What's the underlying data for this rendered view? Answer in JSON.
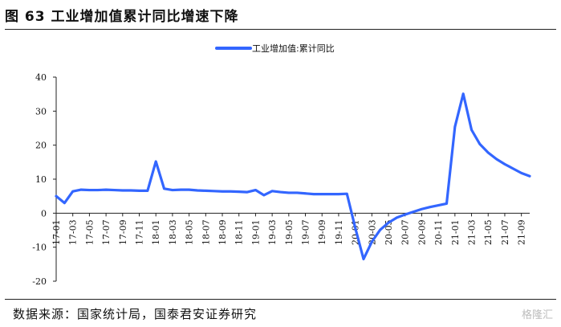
{
  "header": {
    "title": "图 63  工业增加值累计同比增速下降"
  },
  "footer": {
    "source": "数据来源：国家统计局，国泰君安证券研究",
    "watermark": "格隆汇"
  },
  "chart_data": {
    "type": "line",
    "title": "",
    "xlabel": "",
    "ylabel": "",
    "ylim": [
      -20,
      40
    ],
    "yticks": [
      -20,
      -10,
      0,
      10,
      20,
      30,
      40
    ],
    "grid": false,
    "legend_position": "top-center",
    "series": [
      {
        "name": "工业增加值:累计同比",
        "color": "#3366ff",
        "x": [
          "17-01",
          "17-02",
          "17-03",
          "17-04",
          "17-05",
          "17-06",
          "17-07",
          "17-08",
          "17-09",
          "17-10",
          "17-11",
          "17-12",
          "18-01",
          "18-02",
          "18-03",
          "18-04",
          "18-05",
          "18-06",
          "18-07",
          "18-08",
          "18-09",
          "18-10",
          "18-11",
          "18-12",
          "19-01",
          "19-02",
          "19-03",
          "19-04",
          "19-05",
          "19-06",
          "19-07",
          "19-08",
          "19-09",
          "19-10",
          "19-11",
          "19-12",
          "20-01",
          "20-02",
          "20-03",
          "20-04",
          "20-05",
          "20-06",
          "20-07",
          "20-08",
          "20-09",
          "20-10",
          "20-11",
          "20-12",
          "21-01",
          "21-02",
          "21-03",
          "21-04",
          "21-05",
          "21-06",
          "21-07",
          "21-08",
          "21-09",
          "21-10"
        ],
        "values": [
          5.0,
          3.0,
          6.4,
          6.9,
          6.8,
          6.8,
          6.9,
          6.8,
          6.7,
          6.7,
          6.6,
          6.6,
          15.2,
          7.2,
          6.8,
          6.9,
          6.9,
          6.7,
          6.6,
          6.5,
          6.4,
          6.4,
          6.3,
          6.2,
          6.8,
          5.3,
          6.5,
          6.2,
          6.0,
          6.0,
          5.8,
          5.6,
          5.6,
          5.6,
          5.6,
          5.7,
          -4.3,
          -13.5,
          -8.4,
          -4.9,
          -2.8,
          -1.3,
          -0.4,
          0.4,
          1.2,
          1.8,
          2.3,
          2.8,
          25.4,
          35.1,
          24.5,
          20.3,
          17.8,
          15.9,
          14.4,
          13.1,
          11.8,
          10.9
        ]
      }
    ],
    "xtick_labels": [
      "17-01",
      "17-03",
      "17-05",
      "17-07",
      "17-09",
      "17-11",
      "18-01",
      "18-03",
      "18-05",
      "18-07",
      "18-09",
      "18-11",
      "19-01",
      "19-03",
      "19-05",
      "19-07",
      "19-09",
      "19-11",
      "20-01",
      "20-03",
      "20-05",
      "20-07",
      "20-09",
      "20-11",
      "21-01",
      "21-03",
      "21-05",
      "21-07",
      "21-09"
    ]
  }
}
